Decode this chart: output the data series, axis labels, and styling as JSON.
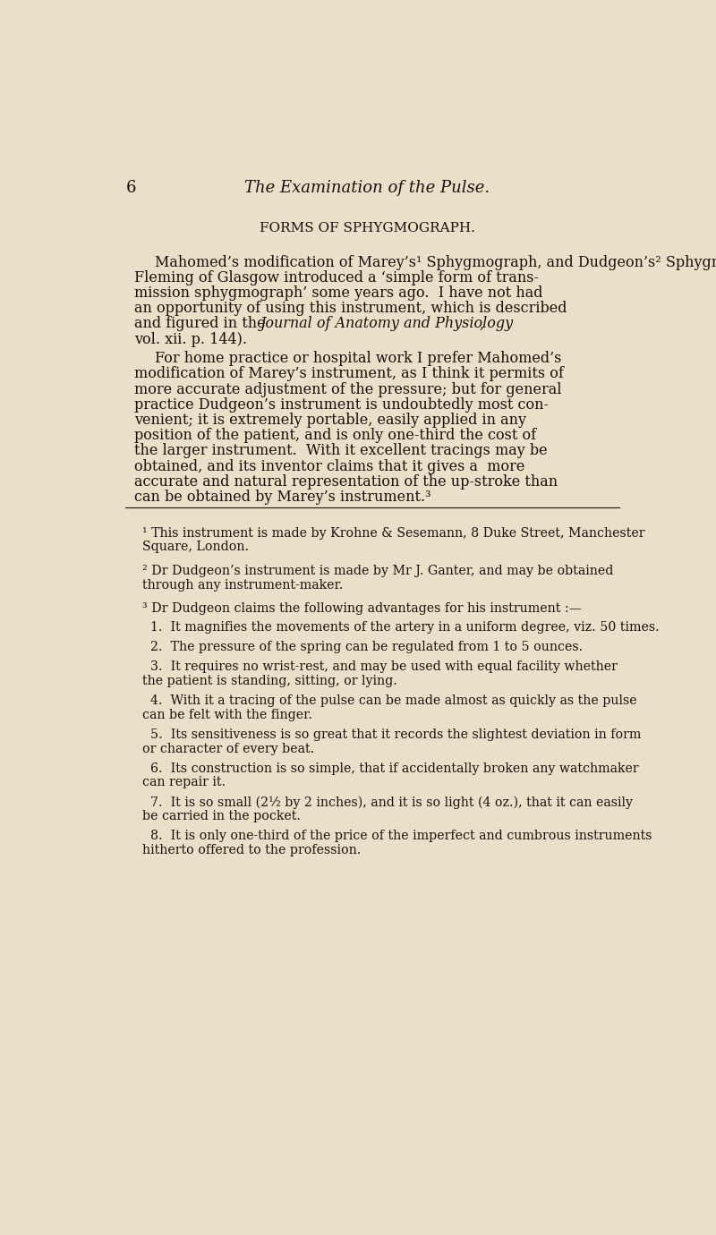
{
  "bg_color": "#e8e0c8",
  "text_color": "#1a1008",
  "page_number": "6",
  "header_italic": "The Examination of the Pulse.",
  "section_title": "FORMS OF SPHYGMOGRAPH.",
  "para1_lines": [
    {
      "text": "Mahomed’s modification of Marey’s¹ Sphygmograph, and Dudgeon’s² Sphygmograph, are the best forms.  (Dr W. J.",
      "italic_parts": null,
      "indent": true
    },
    {
      "text": "Fleming of Glasgow introduced a ‘simple form of trans-",
      "italic_parts": null,
      "indent": false
    },
    {
      "text": "mission sphygmograph’ some years ago.  I have not had",
      "italic_parts": null,
      "indent": false
    },
    {
      "text": "an opportunity of using this instrument, which is described",
      "italic_parts": null,
      "indent": false
    },
    {
      "text": "and figured in the |Journal of Anatomy and Physiology|,",
      "italic_parts": [
        false,
        true,
        false
      ],
      "indent": false
    },
    {
      "text": "vol. xii. p. 144).",
      "italic_parts": null,
      "indent": false
    }
  ],
  "para2_lines": [
    {
      "text": "For home practice or hospital work I prefer Mahomed’s",
      "indent": true
    },
    {
      "text": "modification of Marey’s instrument, as I think it permits of",
      "indent": false
    },
    {
      "text": "more accurate adjustment of the pressure; but for general",
      "indent": false
    },
    {
      "text": "practice Dudgeon’s instrument is undoubtedly most con-",
      "indent": false
    },
    {
      "text": "venient; it is extremely portable, easily applied in any",
      "indent": false
    },
    {
      "text": "position of the patient, and is only one-third the cost of",
      "indent": false
    },
    {
      "text": "the larger instrument.  With it excellent tracings may be",
      "indent": false
    },
    {
      "text": "obtained, and its inventor claims that it gives a  more",
      "indent": false
    },
    {
      "text": "accurate and natural representation of the up-stroke than",
      "indent": false
    },
    {
      "text": "can be obtained by Marey’s instrument.³",
      "indent": false
    }
  ],
  "footnote1_lines": [
    "¹ This instrument is made by Krohne & Sesemann, 8 Duke Street, Manchester",
    "Square, London."
  ],
  "footnote2_lines": [
    "² Dr Dudgeon’s instrument is made by Mr J. Ganter, and may be obtained",
    "through any instrument-maker."
  ],
  "footnote3_header": "³ Dr Dudgeon claims the following advantages for his instrument :—",
  "footnote3_items": [
    [
      "1.  It magnifies the movements of the artery in a uniform degree, viz. 50 times."
    ],
    [
      "2.  The pressure of the spring can be regulated from 1 to 5 ounces."
    ],
    [
      "3.  It requires no wrist-rest, and may be used with equal facility whether",
      "the patient is standing, sitting, or lying."
    ],
    [
      "4.  With it a tracing of the pulse can be made almost as quickly as the pulse",
      "can be felt with the finger."
    ],
    [
      "5.  Its sensitiveness is so great that it records the slightest deviation in form",
      "or character of every beat."
    ],
    [
      "6.  Its construction is so simple, that if accidentally broken any watchmaker",
      "can repair it."
    ],
    [
      "7.  It is so small (2½ by 2 inches), and it is so light (4 oz.), that it can easily",
      "be carried in the pocket."
    ],
    [
      "8.  It is only one-third of the price of the imperfect and cumbrous instruments",
      "hitherto offered to the profession."
    ]
  ]
}
